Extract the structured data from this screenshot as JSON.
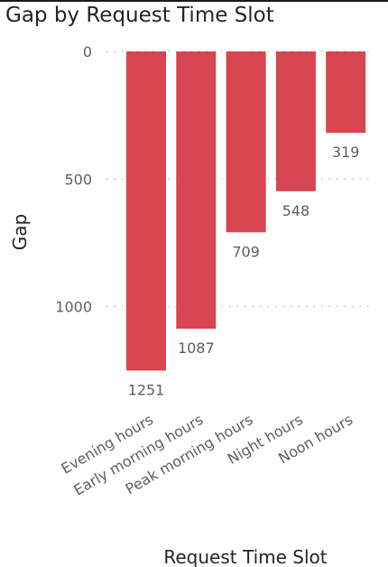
{
  "chart_data": {
    "type": "bar",
    "title": "Gap by Request Time Slot",
    "xlabel": "Request Time Slot",
    "ylabel": "Gap",
    "categories": [
      "Evening hours",
      "Early morning hours",
      "Peak morning hours",
      "Night hours",
      "Noon hours"
    ],
    "values": [
      1251,
      1087,
      709,
      548,
      319
    ],
    "y_axis_reversed": true,
    "ylim": [
      0,
      1251
    ],
    "yticks": [
      0,
      500,
      1000
    ],
    "grid": true,
    "bar_color": "#d64550",
    "data_labels": true
  }
}
